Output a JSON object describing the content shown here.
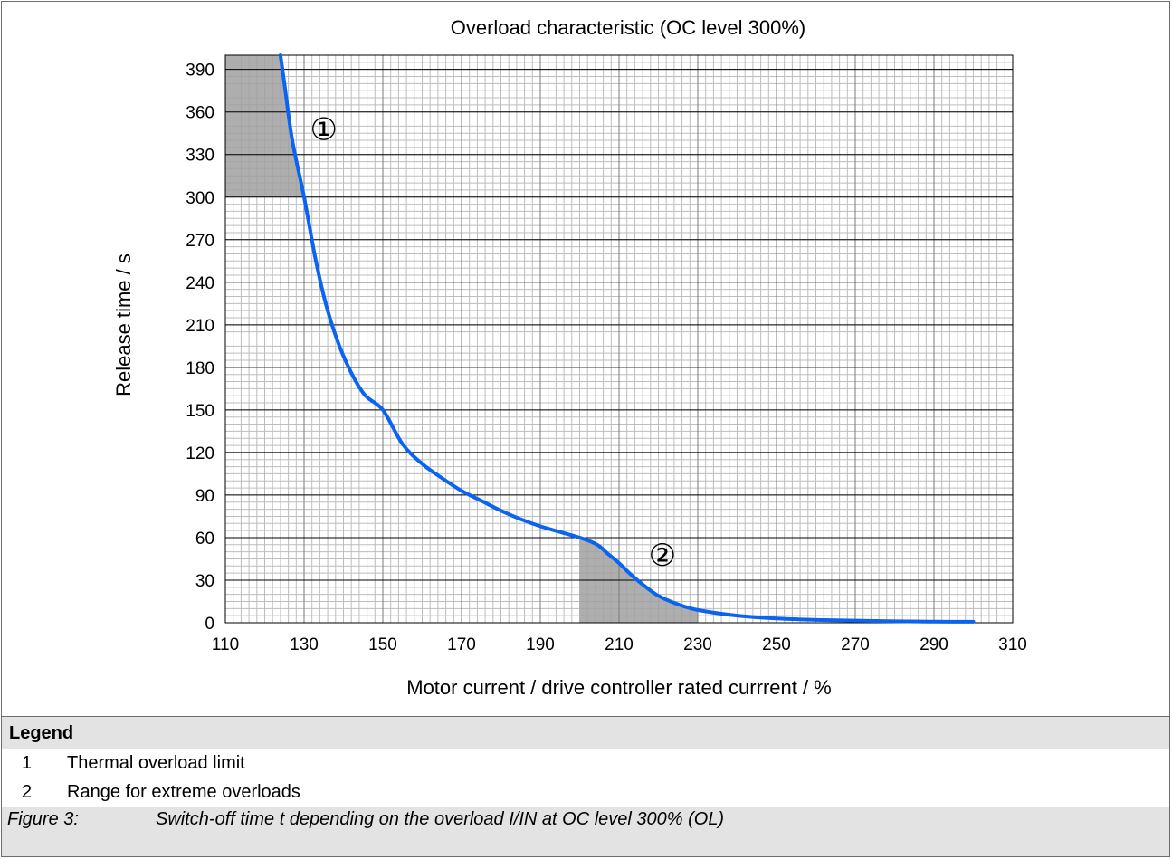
{
  "chart_data": {
    "type": "line",
    "title": "Overload characteristic (OC level 300%)",
    "xlabel": "Motor current / drive controller rated currrent / %",
    "ylabel": "Release time / s",
    "xlim": [
      110,
      310
    ],
    "ylim": [
      0,
      400
    ],
    "x_ticks": [
      110,
      130,
      150,
      170,
      190,
      210,
      230,
      250,
      270,
      290,
      310
    ],
    "y_ticks": [
      0,
      30,
      60,
      90,
      120,
      150,
      180,
      210,
      240,
      270,
      300,
      330,
      360,
      390
    ],
    "grid": true,
    "x": [
      124,
      125,
      127,
      130,
      133,
      136,
      140,
      145,
      150,
      155,
      160,
      165,
      170,
      175,
      180,
      185,
      190,
      195,
      200,
      203,
      205,
      207,
      210,
      213,
      216,
      220,
      225,
      230,
      240,
      250,
      260,
      270,
      280,
      290,
      300
    ],
    "values": [
      400,
      380,
      340,
      300,
      255,
      220,
      188,
      162,
      150,
      126,
      112,
      102,
      93,
      86,
      79,
      73,
      68,
      64,
      60,
      57,
      54,
      49,
      42,
      34,
      27,
      19,
      13,
      9,
      5,
      3,
      2,
      1.5,
      1,
      0.8,
      0.7
    ],
    "line_color": "#0a64f0",
    "shaded_regions": [
      {
        "x": [
          110,
          130
        ],
        "y": [
          300,
          400
        ],
        "color": "#a0a0a0"
      },
      {
        "x": [
          200,
          230
        ],
        "y": [
          0,
          60
        ],
        "color": "#a0a0a0",
        "follows_curve": true
      }
    ],
    "annotations": [
      {
        "text": "①",
        "x": 135,
        "y": 348
      },
      {
        "text": "②",
        "x": 221,
        "y": 48
      }
    ]
  },
  "legend": {
    "header": "Legend",
    "items": [
      {
        "num": "1",
        "text": "Thermal overload limit"
      },
      {
        "num": "2",
        "text": "Range for extreme overloads"
      }
    ]
  },
  "caption": {
    "label": "Figure 3:",
    "text": "Switch-off time t depending on the overload I/IN at OC level 300% (OL)"
  }
}
